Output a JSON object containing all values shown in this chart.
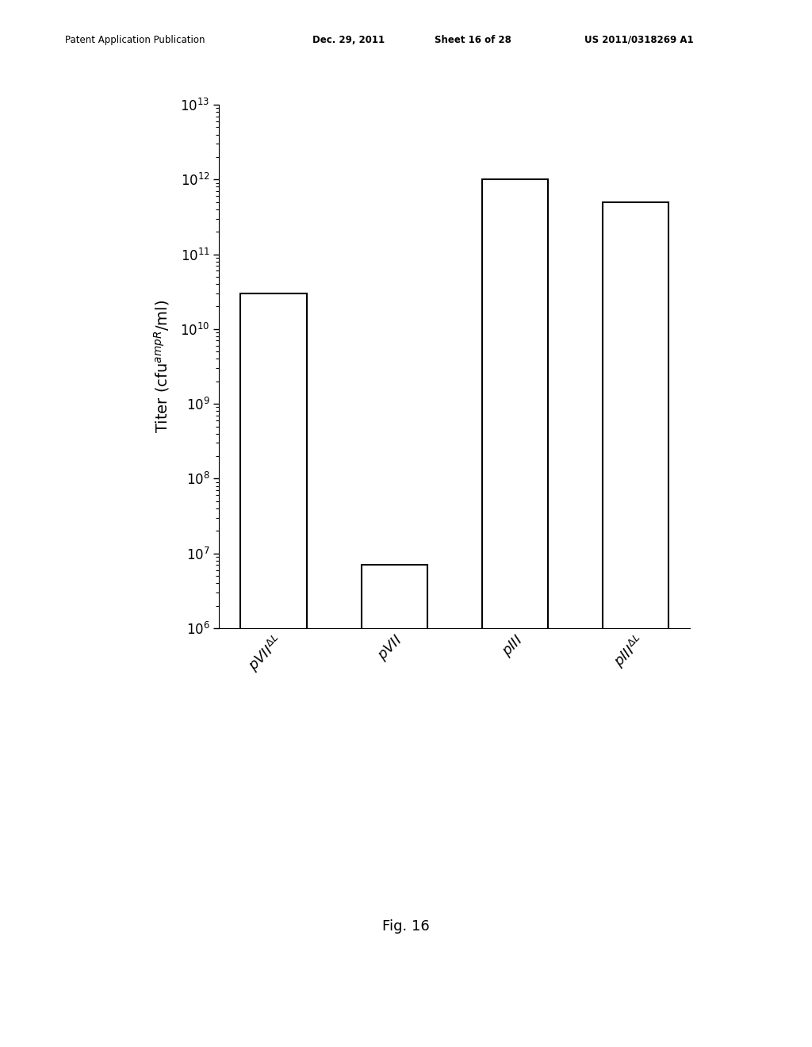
{
  "categories": [
    "pVIIΔL",
    "pVII",
    "pIII",
    "pIIIΔL"
  ],
  "values": [
    30000000000.0,
    7000000.0,
    1000000000000.0,
    500000000000.0
  ],
  "bar_color": "white",
  "bar_edgecolor": "black",
  "bar_linewidth": 1.5,
  "bar_width": 0.55,
  "ymin": 1000000.0,
  "ymax": 10000000000000.0,
  "yticks": [
    1000000.0,
    10000000.0,
    100000000.0,
    1000000000.0,
    10000000000.0,
    100000000000.0,
    1000000000000.0,
    10000000000000.0
  ],
  "fig_caption": "Fig. 16",
  "background_color": "white",
  "header_line1": "Patent Application Publication",
  "header_line2": "Dec. 29, 2011",
  "header_line3": "Sheet 16 of 28",
  "header_line4": "US 2011/0318269 A1"
}
